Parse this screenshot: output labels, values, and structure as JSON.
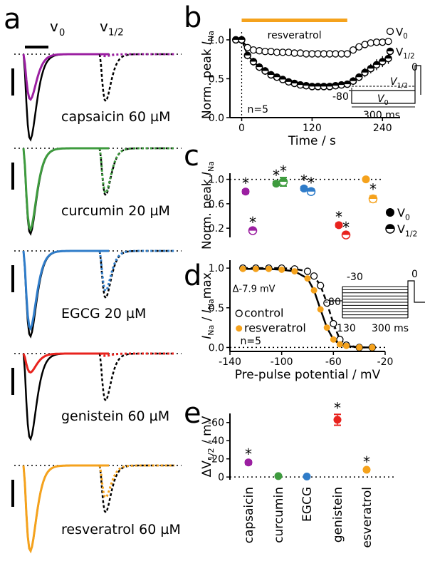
{
  "panel_letters": [
    "a",
    "b",
    "c",
    "d",
    "e"
  ],
  "panel_a": {
    "col_headers": [
      "v",
      "1/2"
    ],
    "col_header_v0_sub": "0",
    "traces": [
      {
        "label": "capsaicin 60 µM",
        "color": "#9b1fa1",
        "v0_peak_fraction": 0.53,
        "vhalf_peak_fraction": 0.04
      },
      {
        "label": "curcumin 20 µM",
        "color": "#3e9b3e",
        "v0_peak_fraction": 0.95,
        "vhalf_peak_fraction": 0.95
      },
      {
        "label": "EGCG 20 µM",
        "color": "#2f7cc9",
        "v0_peak_fraction": 0.91,
        "vhalf_peak_fraction": 0.85
      },
      {
        "label": "genistein 60 µM",
        "color": "#e8231e",
        "v0_peak_fraction": 0.22,
        "vhalf_peak_fraction": 0.05
      },
      {
        "label": "resveratrol 60 µM",
        "color": "#f5a21c",
        "v0_peak_fraction": 1.0,
        "vhalf_peak_fraction": 0.68
      }
    ]
  },
  "chart_data": [
    {
      "panel": "b",
      "type": "line",
      "xlabel": "Time / s",
      "ylabel": "Norm. peak I_Na",
      "xlim": [
        -20,
        270
      ],
      "ylim": [
        0.0,
        1.1
      ],
      "xticks": [
        0,
        120,
        240
      ],
      "yticks": [
        0.0,
        0.5,
        1.0
      ],
      "bar_label": "resveratrol",
      "bar_range": [
        0,
        180
      ],
      "annotation": "n=5",
      "series": [
        {
          "name": "v0",
          "marker": "open-circle",
          "x": [
            -10,
            0,
            10,
            20,
            30,
            40,
            50,
            60,
            70,
            80,
            90,
            100,
            110,
            120,
            130,
            140,
            150,
            160,
            170,
            180,
            190,
            200,
            210,
            220,
            230,
            240,
            250
          ],
          "y": [
            1.0,
            1.0,
            0.9,
            0.87,
            0.86,
            0.85,
            0.85,
            0.84,
            0.84,
            0.84,
            0.83,
            0.83,
            0.82,
            0.82,
            0.82,
            0.82,
            0.82,
            0.82,
            0.82,
            0.82,
            0.87,
            0.91,
            0.94,
            0.96,
            0.97,
            0.97,
            0.98
          ],
          "err": [
            0.02,
            0.02,
            0.03,
            0.03,
            0.02,
            0.02,
            0.02,
            0.02,
            0.02,
            0.02,
            0.02,
            0.02,
            0.02,
            0.02,
            0.02,
            0.02,
            0.02,
            0.02,
            0.02,
            0.02,
            0.02,
            0.02,
            0.02,
            0.02,
            0.02,
            0.02,
            0.02
          ]
        },
        {
          "name": "v1/2",
          "marker": "half-filled-circle",
          "x": [
            -10,
            0,
            10,
            20,
            30,
            40,
            50,
            60,
            70,
            80,
            90,
            100,
            110,
            120,
            130,
            140,
            150,
            160,
            170,
            180,
            190,
            200,
            210,
            220,
            230,
            240,
            250
          ],
          "y": [
            1.0,
            1.0,
            0.8,
            0.72,
            0.65,
            0.6,
            0.55,
            0.52,
            0.49,
            0.46,
            0.44,
            0.42,
            0.41,
            0.4,
            0.4,
            0.4,
            0.4,
            0.41,
            0.42,
            0.43,
            0.47,
            0.52,
            0.58,
            0.63,
            0.68,
            0.72,
            0.76
          ],
          "err": [
            0.02,
            0.02,
            0.05,
            0.05,
            0.05,
            0.05,
            0.05,
            0.04,
            0.04,
            0.04,
            0.04,
            0.04,
            0.04,
            0.04,
            0.04,
            0.04,
            0.04,
            0.04,
            0.04,
            0.04,
            0.05,
            0.05,
            0.06,
            0.06,
            0.07,
            0.07,
            0.07
          ]
        }
      ],
      "protocol_labels": {
        "hold": "-80",
        "top": "0",
        "vhalf": "V",
        "vhalf_sub": "1/2",
        "v0": "V",
        "v0_sub": "0",
        "duration": "300 ms"
      }
    },
    {
      "panel": "c",
      "type": "scatter",
      "ylabel": "Norm. peak I_Na",
      "ylim": [
        0.05,
        1.1
      ],
      "yticks": [
        0.2,
        0.6,
        1.0
      ],
      "categories": [
        "capsaicin",
        "curcumin",
        "EGCG",
        "genistein",
        "resveratrol"
      ],
      "series": [
        {
          "name": "v0",
          "marker": "filled-circle",
          "values": [
            0.8,
            0.93,
            0.85,
            0.25,
            1.0
          ],
          "err": [
            0.03,
            0.03,
            0.03,
            0.03,
            0.02
          ],
          "significant": [
            true,
            true,
            true,
            true,
            false
          ]
        },
        {
          "name": "v1/2",
          "marker": "half-filled-circle",
          "values": [
            0.16,
            0.96,
            0.8,
            0.09,
            0.68
          ],
          "err": [
            0.03,
            0.07,
            0.04,
            0.02,
            0.05
          ],
          "significant": [
            true,
            true,
            true,
            true,
            true
          ]
        }
      ],
      "legend": [
        {
          "name": "V",
          "sub": "0"
        },
        {
          "name": "V",
          "sub": "1/2"
        }
      ]
    },
    {
      "panel": "d",
      "type": "line",
      "xlabel": "Pre-pulse potential / mV",
      "ylabel": "I_Na / I_Na max",
      "xlim": [
        -140,
        -20
      ],
      "ylim": [
        -0.05,
        1.1
      ],
      "xticks": [
        -140,
        -100,
        -60,
        -20
      ],
      "yticks": [
        0.0,
        0.5,
        1.0
      ],
      "annotations": [
        "Δ-7.9 mV",
        "n=5"
      ],
      "series": [
        {
          "name": "control",
          "marker": "open-circle",
          "line": "dashed",
          "x": [
            -130,
            -120,
            -110,
            -100,
            -90,
            -80,
            -75,
            -70,
            -65,
            -60,
            -55,
            -50,
            -40,
            -30
          ],
          "y": [
            1.0,
            1.0,
            1.0,
            1.0,
            0.99,
            0.96,
            0.9,
            0.78,
            0.56,
            0.3,
            0.1,
            0.03,
            0.0,
            0.0
          ]
        },
        {
          "name": "resveratrol",
          "marker": "filled-circle",
          "line": "solid",
          "x": [
            -130,
            -120,
            -110,
            -100,
            -90,
            -80,
            -75,
            -70,
            -65,
            -60,
            -55,
            -50,
            -40,
            -30
          ],
          "y": [
            0.99,
            0.99,
            0.99,
            0.98,
            0.96,
            0.87,
            0.72,
            0.48,
            0.25,
            0.1,
            0.04,
            0.02,
            0.0,
            0.0
          ]
        }
      ],
      "protocol_labels": {
        "top_level": "-30",
        "step": "0",
        "hold": "-80",
        "bottom": "-130",
        "duration": "300 ms"
      }
    },
    {
      "panel": "e",
      "type": "scatter",
      "ylabel": "ΔV_1/2 / mV",
      "ylim": [
        -70,
        3
      ],
      "yticks": [
        -60,
        -40,
        -20,
        0
      ],
      "categories": [
        "capsaicin",
        "curcumin",
        "EGCG",
        "genistein",
        "esveratrol"
      ],
      "values": [
        -16,
        -1,
        -0.5,
        -63,
        -8
      ],
      "err": [
        2,
        1,
        0.5,
        6,
        1.5
      ],
      "significant": [
        true,
        false,
        false,
        true,
        true
      ]
    }
  ],
  "colors": {
    "capsaicin": "#9b1fa1",
    "curcumin": "#3e9b3e",
    "EGCG": "#2f7cc9",
    "genistein": "#e8231e",
    "resveratrol": "#f5a21c"
  }
}
